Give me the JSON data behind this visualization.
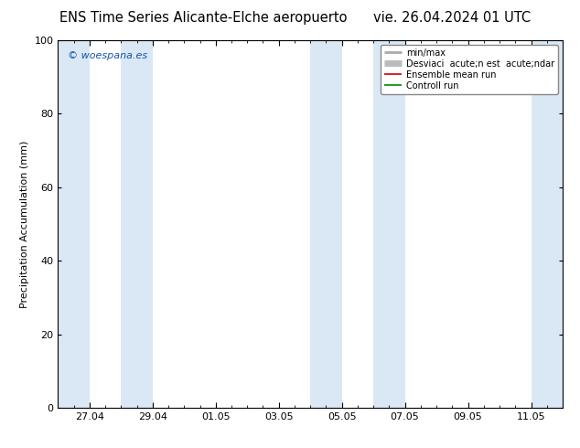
{
  "title_left": "ENS Time Series Alicante-Elche aeropuerto",
  "title_right": "vie. 26.04.2024 01 UTC",
  "ylabel": "Precipitation Accumulation (mm)",
  "ylim": [
    0,
    100
  ],
  "yticks": [
    0,
    20,
    40,
    60,
    80,
    100
  ],
  "xlim": [
    0,
    16
  ],
  "xtick_labels": [
    "27.04",
    "29.04",
    "01.05",
    "03.05",
    "05.05",
    "07.05",
    "09.05",
    "11.05"
  ],
  "xtick_positions": [
    1,
    3,
    5,
    7,
    9,
    11,
    13,
    15
  ],
  "shaded_bands": [
    [
      0,
      1
    ],
    [
      2,
      3
    ],
    [
      8,
      9
    ],
    [
      10,
      11
    ],
    [
      15,
      16
    ]
  ],
  "shade_color": "#dae8f5",
  "bg_color": "#ffffff",
  "watermark": "© woespana.es",
  "watermark_color": "#1155aa",
  "legend_items": [
    {
      "label": "min/max",
      "color": "#aaaaaa",
      "lw": 2.0,
      "ls": "-"
    },
    {
      "label": "Desviaci  acute;n est  acute;ndar",
      "color": "#bbbbbb",
      "lw": 5,
      "ls": "-"
    },
    {
      "label": "Ensemble mean run",
      "color": "#cc0000",
      "lw": 1.2,
      "ls": "-"
    },
    {
      "label": "Controll run",
      "color": "#008800",
      "lw": 1.2,
      "ls": "-"
    }
  ],
  "font_size_title": 10.5,
  "font_size_axis": 8,
  "font_size_tick": 8,
  "font_size_legend": 7,
  "font_size_watermark": 8
}
